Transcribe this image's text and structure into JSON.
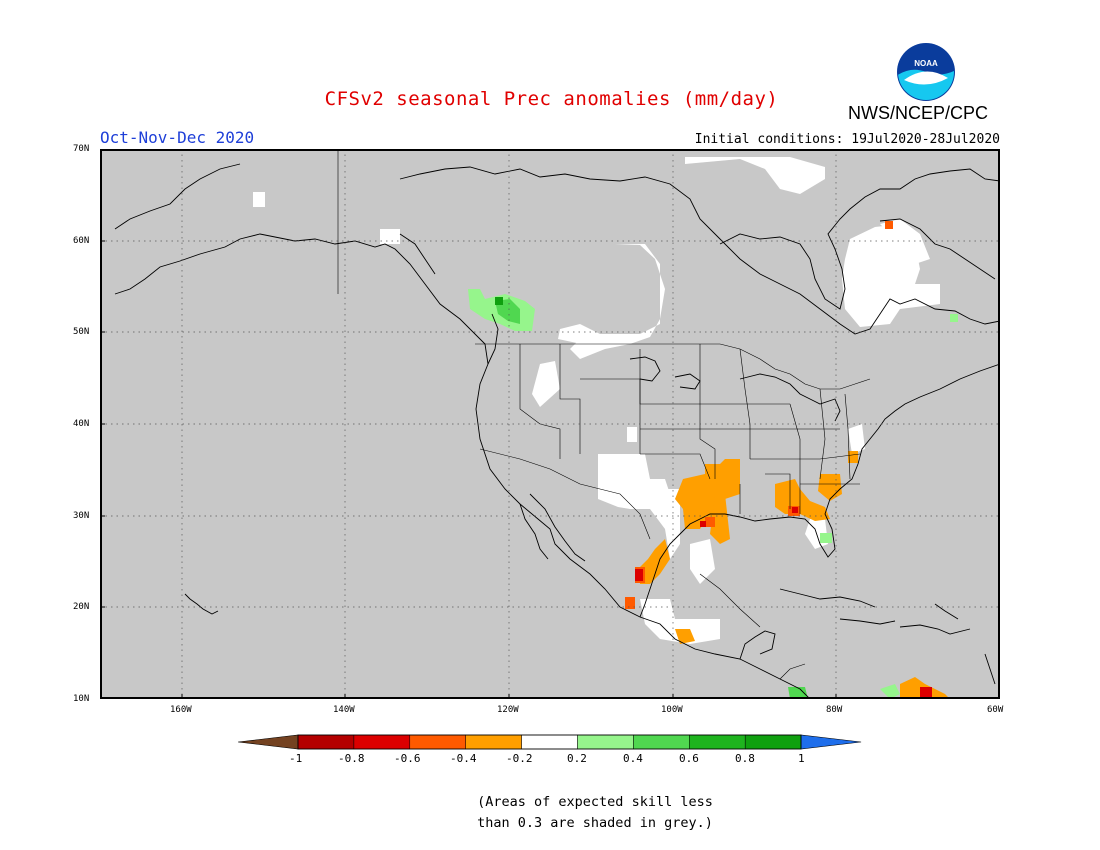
{
  "header": {
    "title": "CFSv2 seasonal Prec anomalies (mm/day)",
    "season": "Oct-Nov-Dec 2020",
    "initial_conditions": "Initial conditions: 19Jul2020-28Jul2020",
    "organization": "NWS/NCEP/CPC",
    "logo_text": "NOAA"
  },
  "map": {
    "region": "North America",
    "lon_range": [
      -170,
      -60
    ],
    "lat_range": [
      10,
      70
    ],
    "background_color": "#c8c8c8",
    "grid": "dotted",
    "lat_labels": [
      "70N",
      "60N",
      "50N",
      "40N",
      "30N",
      "20N",
      "10N"
    ],
    "lon_labels": [
      "160W",
      "140W",
      "120W",
      "100W",
      "80W",
      "60W"
    ]
  },
  "colorbar": {
    "labels": [
      "-1",
      "-0.8",
      "-0.6",
      "-0.4",
      "-0.2",
      "0.2",
      "0.4",
      "0.6",
      "0.8",
      "1"
    ],
    "colors": [
      "#744221",
      "#b40000",
      "#dc0000",
      "#ff5a00",
      "#ff9f00",
      "#ffffff",
      "#96f58c",
      "#50d750",
      "#1eb41e",
      "#0fa00f",
      "#1e6eeb"
    ]
  },
  "note": {
    "line1": "(Areas of expected skill less",
    "line2": "than 0.3 are shaded in grey.)"
  }
}
